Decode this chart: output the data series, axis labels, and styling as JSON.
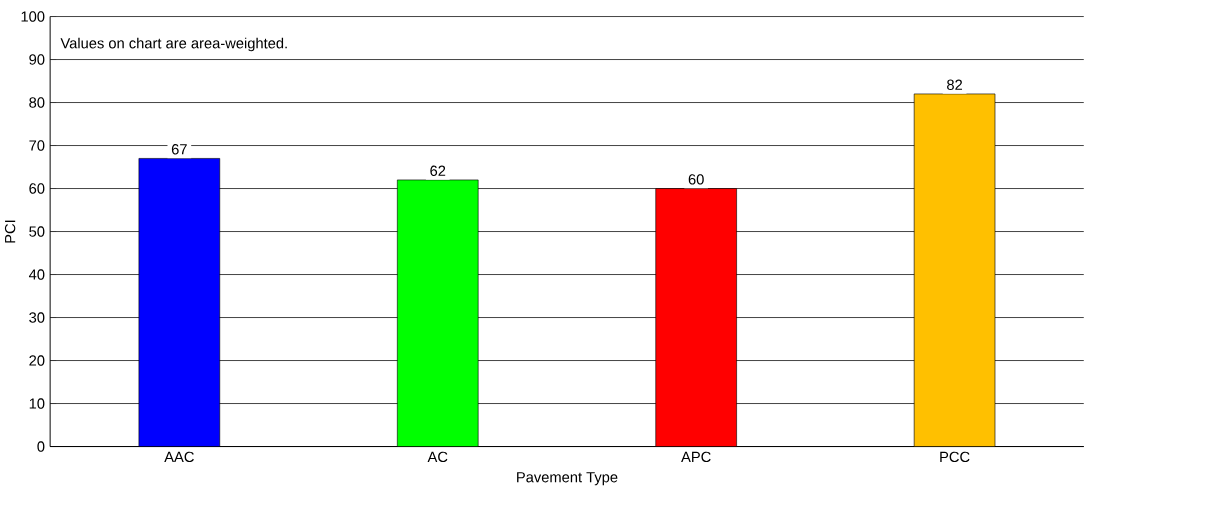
{
  "chart_data": {
    "type": "bar",
    "xlabel": "Pavement Type",
    "ylabel": "PCI",
    "categories": [
      "AAC",
      "AC",
      "APC",
      "PCC"
    ],
    "values": [
      67,
      62,
      60,
      82
    ],
    "colors": [
      "#0000ff",
      "#00ff00",
      "#ff0000",
      "#ffc000"
    ],
    "ylim": [
      0,
      100
    ],
    "yticks": [
      0,
      10,
      20,
      30,
      40,
      50,
      60,
      70,
      80,
      90,
      100
    ],
    "grid": "y",
    "data_labels": true,
    "annotations": [
      "Values on chart are area-weighted."
    ]
  }
}
